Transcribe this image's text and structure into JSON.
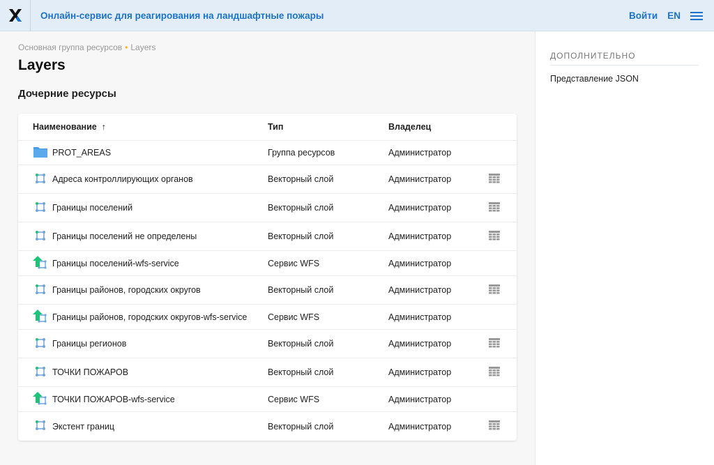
{
  "header": {
    "title": "Онлайн-сервис для реагирования на ландшафтные пожары",
    "login": "Войти",
    "lang": "EN"
  },
  "breadcrumb": {
    "parent": "Основная группа ресурсов",
    "current": "Layers"
  },
  "page_title": "Layers",
  "section_title": "Дочерние ресурсы",
  "table": {
    "headers": {
      "name": "Наименование",
      "sort": "↑",
      "type": "Тип",
      "owner": "Владелец"
    },
    "rows": [
      {
        "name": "PROT_AREAS",
        "type": "Группа ресурсов",
        "owner": "Администратор",
        "icon": "folder"
      },
      {
        "name": "Адреса контроллирующих органов",
        "type": "Векторный слой",
        "owner": "Администратор",
        "icon": "vector"
      },
      {
        "name": "Границы поселений",
        "type": "Векторный слой",
        "owner": "Администратор",
        "icon": "vector"
      },
      {
        "name": "Границы поселений не определены",
        "type": "Векторный слой",
        "owner": "Администратор",
        "icon": "vector"
      },
      {
        "name": "Границы поселений-wfs-service",
        "type": "Сервис WFS",
        "owner": "Администратор",
        "icon": "wfs"
      },
      {
        "name": "Границы районов, городских округов",
        "type": "Векторный слой",
        "owner": "Администратор",
        "icon": "vector"
      },
      {
        "name": "Границы районов, городских округов-wfs-service",
        "type": "Сервис WFS",
        "owner": "Администратор",
        "icon": "wfs"
      },
      {
        "name": "Границы регионов",
        "type": "Векторный слой",
        "owner": "Администратор",
        "icon": "vector"
      },
      {
        "name": "ТОЧКИ ПОЖАРОВ",
        "type": "Векторный слой",
        "owner": "Администратор",
        "icon": "vector"
      },
      {
        "name": "ТОЧКИ ПОЖАРОВ-wfs-service",
        "type": "Сервис WFS",
        "owner": "Администратор",
        "icon": "wfs"
      },
      {
        "name": "Экстент границ",
        "type": "Векторный слой",
        "owner": "Администратор",
        "icon": "vector"
      }
    ]
  },
  "sidebar": {
    "heading": "ДОПОЛНИТЕЛЬНО",
    "link": "Представление JSON"
  },
  "colors": {
    "accent": "#1a73c8",
    "header_bg": "#e3edf7",
    "wfs_green": "#1ec37a"
  }
}
